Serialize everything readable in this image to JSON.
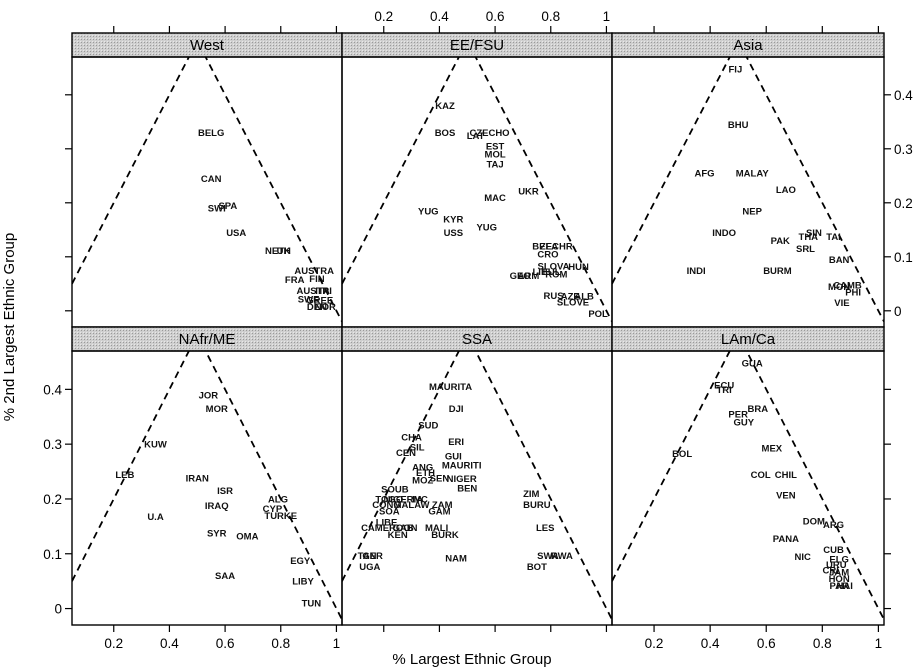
{
  "chart_data": {
    "type": "scatter",
    "xlabel": "% Largest Ethnic Group",
    "ylabel": "% 2nd Largest Ethnic Group",
    "xlim": [
      0.05,
      1.02
    ],
    "ylim": [
      -0.03,
      0.47
    ],
    "x_ticks": [
      0.2,
      0.4,
      0.6,
      0.8,
      1
    ],
    "x_tick_labels": [
      "0.2",
      "0.4",
      "0.6",
      "0.8",
      "1"
    ],
    "y_ticks": [
      0,
      0.1,
      0.2,
      0.3,
      0.4
    ],
    "y_tick_labels": [
      "0",
      "0.1",
      "0.2",
      "0.3",
      "0.4"
    ],
    "reference_line": "dashed triangle: y = x and y = 1 - x",
    "panels": [
      {
        "name": "West",
        "points": [
          {
            "label": "BELG",
            "x": 0.55,
            "y": 0.33
          },
          {
            "label": "CAN",
            "x": 0.55,
            "y": 0.245
          },
          {
            "label": "SPA",
            "x": 0.61,
            "y": 0.195
          },
          {
            "label": "SWI",
            "x": 0.57,
            "y": 0.19
          },
          {
            "label": "USA",
            "x": 0.64,
            "y": 0.145
          },
          {
            "label": "NETH",
            "x": 0.79,
            "y": 0.112
          },
          {
            "label": "UK",
            "x": 0.81,
            "y": 0.112
          },
          {
            "label": "AUSTRA",
            "x": 0.92,
            "y": 0.075
          },
          {
            "label": "FIN",
            "x": 0.93,
            "y": 0.06
          },
          {
            "label": "FRA",
            "x": 0.85,
            "y": 0.058
          },
          {
            "label": "AUSTRI",
            "x": 0.92,
            "y": 0.038
          },
          {
            "label": "ITA",
            "x": 0.95,
            "y": 0.038
          },
          {
            "label": "SWE",
            "x": 0.9,
            "y": 0.022
          },
          {
            "label": "GREE",
            "x": 0.94,
            "y": 0.02
          },
          {
            "label": "DEN",
            "x": 0.93,
            "y": 0.008
          },
          {
            "label": "NOR",
            "x": 0.96,
            "y": 0.008
          }
        ]
      },
      {
        "name": "EE/FSU",
        "points": [
          {
            "label": "KAZ",
            "x": 0.42,
            "y": 0.38
          },
          {
            "label": "BOS",
            "x": 0.42,
            "y": 0.33
          },
          {
            "label": "LAT",
            "x": 0.53,
            "y": 0.325
          },
          {
            "label": "CZECHO",
            "x": 0.58,
            "y": 0.33
          },
          {
            "label": "EST",
            "x": 0.6,
            "y": 0.305
          },
          {
            "label": "MOL",
            "x": 0.6,
            "y": 0.29
          },
          {
            "label": "TAJ",
            "x": 0.6,
            "y": 0.272
          },
          {
            "label": "UKR",
            "x": 0.72,
            "y": 0.222
          },
          {
            "label": "MAC",
            "x": 0.6,
            "y": 0.21
          },
          {
            "label": "YUG",
            "x": 0.36,
            "y": 0.185
          },
          {
            "label": "KYR",
            "x": 0.45,
            "y": 0.17
          },
          {
            "label": "YUG",
            "x": 0.57,
            "y": 0.155
          },
          {
            "label": "USS",
            "x": 0.45,
            "y": 0.145
          },
          {
            "label": "BELA",
            "x": 0.78,
            "y": 0.12
          },
          {
            "label": "ZECHR",
            "x": 0.82,
            "y": 0.12
          },
          {
            "label": "CRO",
            "x": 0.79,
            "y": 0.105
          },
          {
            "label": "SLOVA",
            "x": 0.81,
            "y": 0.083
          },
          {
            "label": "LIT",
            "x": 0.76,
            "y": 0.073
          },
          {
            "label": "BUL",
            "x": 0.8,
            "y": 0.073
          },
          {
            "label": "ROM",
            "x": 0.82,
            "y": 0.068
          },
          {
            "label": "GEO",
            "x": 0.69,
            "y": 0.065
          },
          {
            "label": "ARM",
            "x": 0.72,
            "y": 0.065
          },
          {
            "label": "HUN",
            "x": 0.9,
            "y": 0.082
          },
          {
            "label": "RUS",
            "x": 0.81,
            "y": 0.028
          },
          {
            "label": "AZE",
            "x": 0.87,
            "y": 0.027
          },
          {
            "label": "ALB",
            "x": 0.92,
            "y": 0.027
          },
          {
            "label": "SLOVE",
            "x": 0.88,
            "y": 0.016
          },
          {
            "label": "POL",
            "x": 0.97,
            "y": -0.005
          }
        ]
      },
      {
        "name": "Asia",
        "points": [
          {
            "label": "FIJ",
            "x": 0.49,
            "y": 0.448
          },
          {
            "label": "BHU",
            "x": 0.5,
            "y": 0.345
          },
          {
            "label": "AFG",
            "x": 0.38,
            "y": 0.255
          },
          {
            "label": "MALAY",
            "x": 0.55,
            "y": 0.255
          },
          {
            "label": "LAO",
            "x": 0.67,
            "y": 0.225
          },
          {
            "label": "NEP",
            "x": 0.55,
            "y": 0.185
          },
          {
            "label": "INDO",
            "x": 0.45,
            "y": 0.145
          },
          {
            "label": "SIN",
            "x": 0.77,
            "y": 0.145
          },
          {
            "label": "TAI",
            "x": 0.84,
            "y": 0.138
          },
          {
            "label": "PAK",
            "x": 0.65,
            "y": 0.13
          },
          {
            "label": "THA",
            "x": 0.75,
            "y": 0.138
          },
          {
            "label": "SRL",
            "x": 0.74,
            "y": 0.115
          },
          {
            "label": "BAN",
            "x": 0.86,
            "y": 0.095
          },
          {
            "label": "INDI",
            "x": 0.35,
            "y": 0.075
          },
          {
            "label": "BURM",
            "x": 0.64,
            "y": 0.075
          },
          {
            "label": "MON",
            "x": 0.86,
            "y": 0.045
          },
          {
            "label": "CAMB",
            "x": 0.89,
            "y": 0.048
          },
          {
            "label": "PHI",
            "x": 0.91,
            "y": 0.035
          },
          {
            "label": "VIE",
            "x": 0.87,
            "y": 0.015
          }
        ]
      },
      {
        "name": "NAfr/ME",
        "points": [
          {
            "label": "JOR",
            "x": 0.54,
            "y": 0.39
          },
          {
            "label": "MOR",
            "x": 0.57,
            "y": 0.365
          },
          {
            "label": "KUW",
            "x": 0.35,
            "y": 0.3
          },
          {
            "label": "LEB",
            "x": 0.24,
            "y": 0.245
          },
          {
            "label": "IRAN",
            "x": 0.5,
            "y": 0.238
          },
          {
            "label": "ISR",
            "x": 0.6,
            "y": 0.215
          },
          {
            "label": "IRAQ",
            "x": 0.57,
            "y": 0.188
          },
          {
            "label": "ALG",
            "x": 0.79,
            "y": 0.2
          },
          {
            "label": "CYP",
            "x": 0.77,
            "y": 0.183
          },
          {
            "label": "TURKE",
            "x": 0.8,
            "y": 0.17
          },
          {
            "label": "U.A",
            "x": 0.35,
            "y": 0.168
          },
          {
            "label": "SYR",
            "x": 0.57,
            "y": 0.138
          },
          {
            "label": "OMA",
            "x": 0.68,
            "y": 0.132
          },
          {
            "label": "EGY",
            "x": 0.87,
            "y": 0.088
          },
          {
            "label": "SAA",
            "x": 0.6,
            "y": 0.06
          },
          {
            "label": "LIBY",
            "x": 0.88,
            "y": 0.05
          },
          {
            "label": "TUN",
            "x": 0.91,
            "y": 0.01
          }
        ]
      },
      {
        "name": "SSA",
        "points": [
          {
            "label": "MAURITA",
            "x": 0.44,
            "y": 0.405
          },
          {
            "label": "DJI",
            "x": 0.46,
            "y": 0.365
          },
          {
            "label": "SUD",
            "x": 0.36,
            "y": 0.335
          },
          {
            "label": "CHA",
            "x": 0.3,
            "y": 0.313
          },
          {
            "label": "ERI",
            "x": 0.46,
            "y": 0.305
          },
          {
            "label": "SIL",
            "x": 0.32,
            "y": 0.295
          },
          {
            "label": "CEN",
            "x": 0.28,
            "y": 0.285
          },
          {
            "label": "GUI",
            "x": 0.45,
            "y": 0.278
          },
          {
            "label": "MAURITI",
            "x": 0.48,
            "y": 0.262
          },
          {
            "label": "ANG",
            "x": 0.34,
            "y": 0.258
          },
          {
            "label": "ETH",
            "x": 0.35,
            "y": 0.248
          },
          {
            "label": "SEN",
            "x": 0.4,
            "y": 0.238
          },
          {
            "label": "MOZ",
            "x": 0.34,
            "y": 0.235
          },
          {
            "label": "NIGER",
            "x": 0.48,
            "y": 0.237
          },
          {
            "label": "BEN",
            "x": 0.5,
            "y": 0.22
          },
          {
            "label": "SOUB",
            "x": 0.24,
            "y": 0.218
          },
          {
            "label": "TOGO",
            "x": 0.22,
            "y": 0.2
          },
          {
            "label": "NIGERIA",
            "x": 0.27,
            "y": 0.2
          },
          {
            "label": "IVC",
            "x": 0.33,
            "y": 0.2
          },
          {
            "label": "CONG",
            "x": 0.21,
            "y": 0.19
          },
          {
            "label": "MALAW",
            "x": 0.3,
            "y": 0.19
          },
          {
            "label": "ZAM",
            "x": 0.41,
            "y": 0.19
          },
          {
            "label": "SOA",
            "x": 0.22,
            "y": 0.178
          },
          {
            "label": "GAM",
            "x": 0.4,
            "y": 0.178
          },
          {
            "label": "ZIM",
            "x": 0.73,
            "y": 0.21
          },
          {
            "label": "BURU",
            "x": 0.75,
            "y": 0.19
          },
          {
            "label": "LIBE",
            "x": 0.21,
            "y": 0.158
          },
          {
            "label": "CAMEROON",
            "x": 0.22,
            "y": 0.148
          },
          {
            "label": "GAB",
            "x": 0.27,
            "y": 0.148
          },
          {
            "label": "MALI",
            "x": 0.39,
            "y": 0.148
          },
          {
            "label": "KEN",
            "x": 0.25,
            "y": 0.135
          },
          {
            "label": "BURK",
            "x": 0.42,
            "y": 0.135
          },
          {
            "label": "LES",
            "x": 0.78,
            "y": 0.148
          },
          {
            "label": "TAN",
            "x": 0.14,
            "y": 0.097
          },
          {
            "label": "UGA",
            "x": 0.15,
            "y": 0.077
          },
          {
            "label": "GER",
            "x": 0.16,
            "y": 0.097
          },
          {
            "label": "NAM",
            "x": 0.46,
            "y": 0.092
          },
          {
            "label": "SWA",
            "x": 0.79,
            "y": 0.097
          },
          {
            "label": "RWA",
            "x": 0.84,
            "y": 0.097
          },
          {
            "label": "BOT",
            "x": 0.75,
            "y": 0.077
          }
        ]
      },
      {
        "name": "LAm/Ca",
        "points": [
          {
            "label": "GUA",
            "x": 0.55,
            "y": 0.448
          },
          {
            "label": "ECU",
            "x": 0.45,
            "y": 0.408
          },
          {
            "label": "TRI",
            "x": 0.45,
            "y": 0.4
          },
          {
            "label": "BRA",
            "x": 0.57,
            "y": 0.365
          },
          {
            "label": "PER",
            "x": 0.5,
            "y": 0.355
          },
          {
            "label": "GUY",
            "x": 0.52,
            "y": 0.34
          },
          {
            "label": "BOL",
            "x": 0.3,
            "y": 0.283
          },
          {
            "label": "MEX",
            "x": 0.62,
            "y": 0.293
          },
          {
            "label": "COL",
            "x": 0.58,
            "y": 0.245
          },
          {
            "label": "CHIL",
            "x": 0.67,
            "y": 0.245
          },
          {
            "label": "VEN",
            "x": 0.67,
            "y": 0.207
          },
          {
            "label": "DOM",
            "x": 0.77,
            "y": 0.16
          },
          {
            "label": "ARG",
            "x": 0.84,
            "y": 0.153
          },
          {
            "label": "PANA",
            "x": 0.67,
            "y": 0.128
          },
          {
            "label": "NIC",
            "x": 0.73,
            "y": 0.095
          },
          {
            "label": "CUB",
            "x": 0.84,
            "y": 0.108
          },
          {
            "label": "ELG",
            "x": 0.86,
            "y": 0.09
          },
          {
            "label": "URU",
            "x": 0.85,
            "y": 0.08
          },
          {
            "label": "CRI",
            "x": 0.83,
            "y": 0.07
          },
          {
            "label": "JAM",
            "x": 0.86,
            "y": 0.067
          },
          {
            "label": "HON",
            "x": 0.86,
            "y": 0.055
          },
          {
            "label": "PAR",
            "x": 0.86,
            "y": 0.042
          },
          {
            "label": "HAI",
            "x": 0.88,
            "y": 0.042
          }
        ]
      }
    ]
  }
}
